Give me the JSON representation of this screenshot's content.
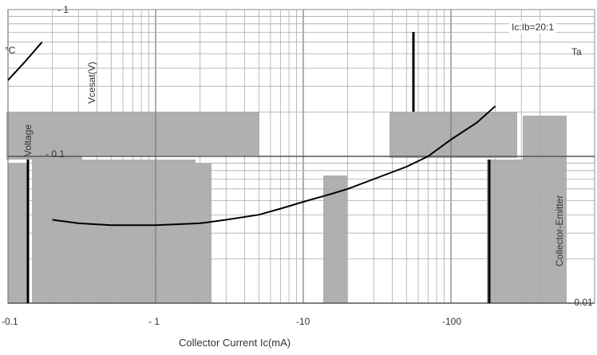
{
  "chart_data": {
    "type": "line",
    "title": "",
    "xlabel": "Collector Current   Ic(mA)",
    "ylabel_left": "Voltage",
    "ylabel_right": "Collector-Emitter",
    "ylabel_top": "Vcesat(V)",
    "condition": "Ic:Ib=20:1",
    "fragment_left": "°C",
    "fragment_right": "Ta",
    "x_scale": "log",
    "y_scale": "log",
    "xlim": [
      -0.1,
      -200
    ],
    "ylim": [
      -0.01,
      -1
    ],
    "x_ticks": [
      "-0.1",
      "- 1",
      "-10",
      "-100"
    ],
    "y_ticks": [
      "- 1",
      "- 0.1",
      "- 0.01"
    ],
    "grid": true,
    "series": [
      {
        "x": [
          -0.2,
          -0.3,
          -0.5,
          -0.7,
          -1,
          -2,
          -3,
          -5,
          -7,
          -10,
          -15,
          -20,
          -30,
          -50,
          -70,
          -100,
          -150,
          -200
        ],
        "y": [
          -0.037,
          -0.035,
          -0.034,
          -0.034,
          -0.034,
          -0.035,
          -0.037,
          -0.04,
          -0.044,
          -0.049,
          -0.055,
          -0.06,
          -0.07,
          -0.085,
          -0.1,
          -0.13,
          -0.17,
          -0.22
        ]
      }
    ],
    "partial_series_left": {
      "x": [
        -0.1,
        -0.13,
        -0.17
      ],
      "y": [
        -0.33,
        -0.44,
        -0.6
      ]
    }
  }
}
